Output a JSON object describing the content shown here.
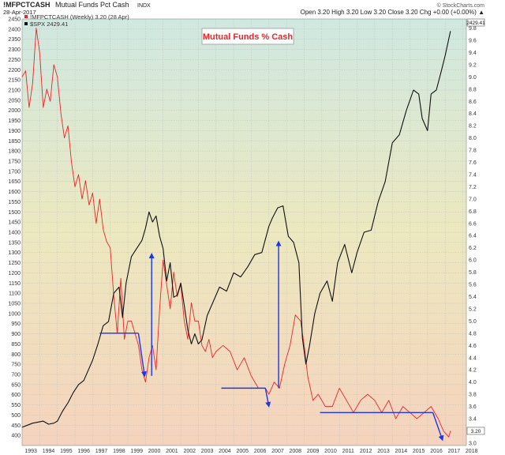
{
  "header": {
    "symbol": "!MFPCTCASH",
    "name": "Mutual Funds Pct Cash",
    "exchange": "INDX",
    "date": "28-Apr-2017",
    "ohlc": "Open 3.20  High 3.20  Low 3.20  Close 3.20  Chg +0.00 (+0.00%) ▲",
    "credit": "© StockCharts.com"
  },
  "legend": {
    "primary": "!MFPCTCASH (Weekly) 3.20 (28 Apr)",
    "secondary": "$SPX 2429.41"
  },
  "annotation": {
    "title": "Mutual Funds % Cash",
    "color": "#e8262a"
  },
  "colors": {
    "cash_line": "#e8262a",
    "spx_line": "#111111",
    "arrows": "#1a36e8",
    "bg_top": "#cfe8e1",
    "bg_mid": "#ece8bf",
    "bg_bottom": "#f5d3be"
  },
  "chart_data": {
    "type": "line",
    "x_axis": {
      "type": "year",
      "range": [
        1993.0,
        2018.2
      ],
      "ticks": [
        "1993",
        "1994",
        "1995",
        "1996",
        "1997",
        "1998",
        "1999",
        "2000",
        "2001",
        "2002",
        "2003",
        "2004",
        "2005",
        "2006",
        "2007",
        "2008",
        "2009",
        "2010",
        "2011",
        "2012",
        "2013",
        "2014",
        "2015",
        "2016",
        "2017",
        "2018"
      ]
    },
    "y_left": {
      "label": "$SPX",
      "range": [
        350,
        2450
      ],
      "ticks": [
        400,
        450,
        500,
        550,
        600,
        650,
        700,
        750,
        800,
        850,
        900,
        950,
        1000,
        1050,
        1100,
        1150,
        1200,
        1250,
        1300,
        1350,
        1400,
        1450,
        1500,
        1550,
        1600,
        1650,
        1700,
        1750,
        1800,
        1850,
        1900,
        1950,
        2000,
        2050,
        2100,
        2150,
        2200,
        2250,
        2300,
        2350,
        2400,
        2450
      ]
    },
    "y_right": {
      "label": "Mutual Funds Pct Cash",
      "range": [
        2.96,
        9.95
      ],
      "ticks": [
        "3.0",
        "3.2",
        "3.4",
        "3.6",
        "3.8",
        "4.0",
        "4.2",
        "4.4",
        "4.6",
        "4.8",
        "5.0",
        "5.2",
        "5.4",
        "5.6",
        "5.8",
        "6.0",
        "6.2",
        "6.4",
        "6.6",
        "6.8",
        "7.0",
        "7.2",
        "7.4",
        "7.6",
        "7.8",
        "8.0",
        "8.2",
        "8.4",
        "8.6",
        "8.8",
        "9.0",
        "9.2",
        "9.4",
        "9.6",
        "9.8"
      ]
    },
    "grid": true,
    "legend_position": "top-left",
    "series": [
      {
        "name": "!MFPCTCASH (Weekly)",
        "axis": "right",
        "x": [
          1993.0,
          1993.2,
          1993.4,
          1993.6,
          1993.8,
          1994.0,
          1994.2,
          1994.4,
          1994.6,
          1994.8,
          1995.0,
          1995.2,
          1995.4,
          1995.6,
          1995.8,
          1996.0,
          1996.2,
          1996.4,
          1996.6,
          1996.8,
          1997.0,
          1997.2,
          1997.4,
          1997.6,
          1997.8,
          1998.0,
          1998.2,
          1998.4,
          1998.6,
          1998.8,
          1999.0,
          1999.2,
          1999.4,
          1999.6,
          1999.8,
          2000.0,
          2000.2,
          2000.4,
          2000.6,
          2000.8,
          2001.0,
          2001.2,
          2001.4,
          2001.6,
          2001.8,
          2002.0,
          2002.2,
          2002.4,
          2002.6,
          2002.8,
          2003.0,
          2003.2,
          2003.4,
          2003.6,
          2003.8,
          2004.0,
          2004.4,
          2004.8,
          2005.2,
          2005.6,
          2006.0,
          2006.4,
          2006.8,
          2007.0,
          2007.3,
          2007.6,
          2007.9,
          2008.2,
          2008.5,
          2008.8,
          2009.0,
          2009.2,
          2009.5,
          2009.8,
          2010.2,
          2010.6,
          2011.0,
          2011.4,
          2011.8,
          2012.2,
          2012.6,
          2013.0,
          2013.4,
          2013.8,
          2014.2,
          2014.6,
          2015.0,
          2015.4,
          2015.8,
          2016.2,
          2016.6,
          2016.9,
          2017.2,
          2017.3
        ],
        "values": [
          9.0,
          9.1,
          8.5,
          8.9,
          9.8,
          9.4,
          8.5,
          8.8,
          8.6,
          9.2,
          9.0,
          8.4,
          8.0,
          8.2,
          7.6,
          7.2,
          7.4,
          7.0,
          7.3,
          6.9,
          7.1,
          6.6,
          7.0,
          6.5,
          6.3,
          6.2,
          5.4,
          4.8,
          5.7,
          4.7,
          5.0,
          5.0,
          4.8,
          4.6,
          4.2,
          4.0,
          4.4,
          4.6,
          4.2,
          5.2,
          6.0,
          5.6,
          5.2,
          5.8,
          5.4,
          5.6,
          5.0,
          4.7,
          5.3,
          5.0,
          5.0,
          4.6,
          4.5,
          4.7,
          4.4,
          4.5,
          4.6,
          4.5,
          4.2,
          4.4,
          4.1,
          3.9,
          3.9,
          3.8,
          4.0,
          3.9,
          4.3,
          4.6,
          5.1,
          5.0,
          4.6,
          4.1,
          3.7,
          3.8,
          3.6,
          3.6,
          3.9,
          3.7,
          3.5,
          3.7,
          3.8,
          3.7,
          3.5,
          3.7,
          3.4,
          3.6,
          3.5,
          3.4,
          3.5,
          3.6,
          3.4,
          3.2,
          3.1,
          3.2
        ]
      },
      {
        "name": "$SPX",
        "axis": "left",
        "x": [
          1993.0,
          1993.3,
          1993.6,
          1993.9,
          1994.2,
          1994.5,
          1994.8,
          1995.0,
          1995.3,
          1995.6,
          1995.9,
          1996.2,
          1996.5,
          1996.8,
          1997.0,
          1997.3,
          1997.6,
          1997.9,
          1998.2,
          1998.5,
          1998.7,
          1998.9,
          1999.2,
          1999.5,
          1999.8,
          2000.0,
          2000.2,
          2000.4,
          2000.6,
          2000.8,
          2001.0,
          2001.2,
          2001.4,
          2001.6,
          2001.8,
          2002.0,
          2002.2,
          2002.4,
          2002.6,
          2002.8,
          2003.0,
          2003.2,
          2003.5,
          2003.8,
          2004.2,
          2004.6,
          2005.0,
          2005.4,
          2005.8,
          2006.2,
          2006.6,
          2007.0,
          2007.2,
          2007.5,
          2007.8,
          2008.1,
          2008.4,
          2008.7,
          2008.9,
          2009.1,
          2009.3,
          2009.6,
          2009.9,
          2010.3,
          2010.6,
          2010.9,
          2011.3,
          2011.7,
          2012.0,
          2012.4,
          2012.8,
          2013.2,
          2013.6,
          2014.0,
          2014.4,
          2014.8,
          2015.2,
          2015.5,
          2015.7,
          2016.0,
          2016.2,
          2016.5,
          2016.8,
          2017.0,
          2017.3
        ],
        "values": [
          440,
          450,
          460,
          465,
          470,
          455,
          460,
          470,
          520,
          560,
          610,
          650,
          670,
          730,
          770,
          850,
          940,
          960,
          1100,
          1130,
          980,
          1150,
          1280,
          1320,
          1360,
          1420,
          1500,
          1450,
          1480,
          1380,
          1320,
          1160,
          1250,
          1080,
          1090,
          1150,
          1040,
          920,
          850,
          900,
          850,
          870,
          990,
          1050,
          1130,
          1110,
          1200,
          1180,
          1230,
          1290,
          1300,
          1430,
          1470,
          1520,
          1530,
          1380,
          1350,
          1250,
          880,
          750,
          840,
          1000,
          1100,
          1160,
          1060,
          1250,
          1340,
          1200,
          1300,
          1400,
          1410,
          1550,
          1650,
          1840,
          1880,
          2000,
          2100,
          2080,
          1960,
          1900,
          2080,
          2100,
          2200,
          2270,
          2390
        ]
      }
    ],
    "annotations": [
      {
        "label": "Mutual Funds % Cash"
      }
    ]
  }
}
